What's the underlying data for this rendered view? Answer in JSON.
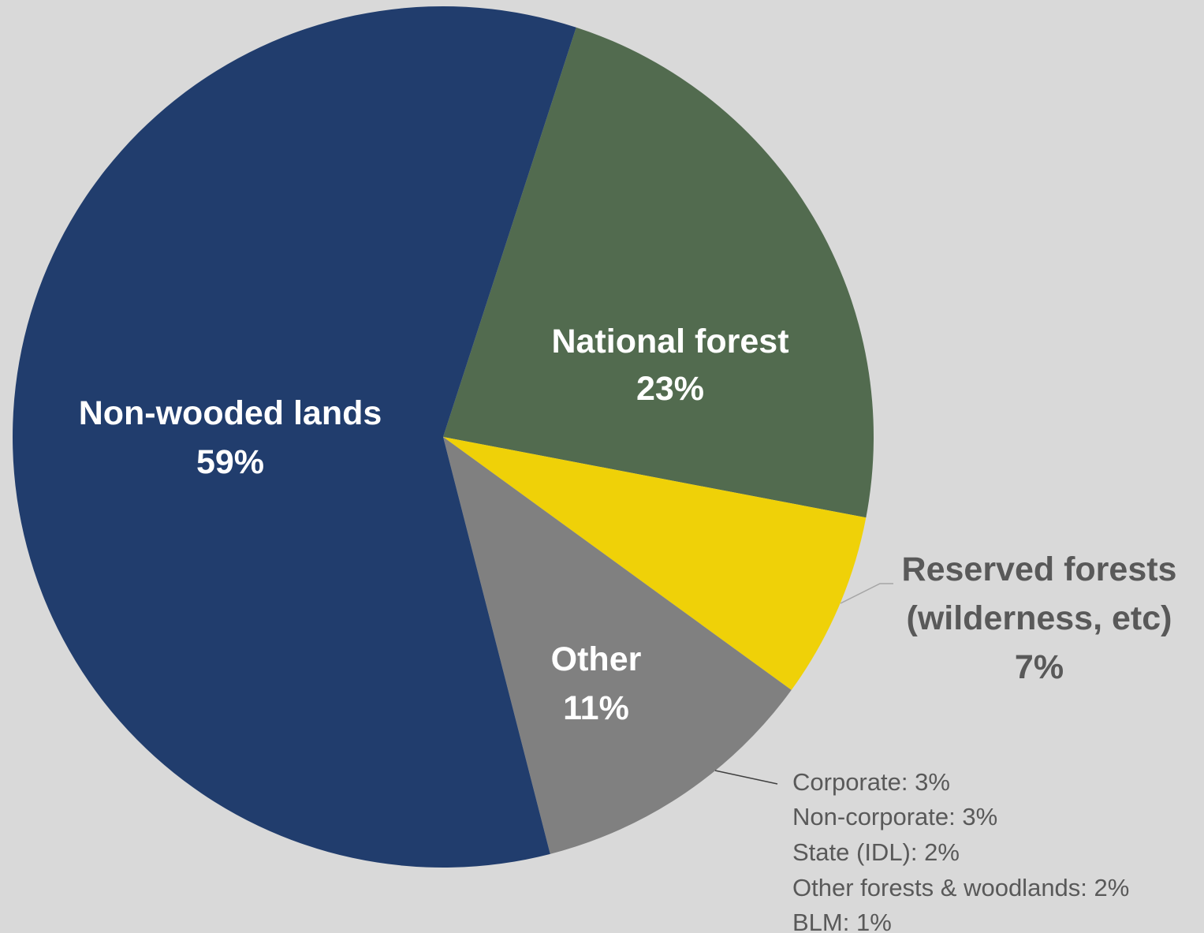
{
  "chart_data": {
    "type": "pie",
    "slices": [
      {
        "label": "National forest",
        "value": 23,
        "value_label": "23%",
        "color": "#526b4f",
        "label_color": "#ffffff"
      },
      {
        "label": "Reserved forests (wilderness, etc)",
        "label_lines": [
          "Reserved forests",
          "(wilderness, etc)"
        ],
        "value": 7,
        "value_label": "7%",
        "color": "#efd108",
        "label_color": "#595959"
      },
      {
        "label": "Other",
        "value": 11,
        "value_label": "11%",
        "color": "#808080",
        "label_color": "#ffffff"
      },
      {
        "label": "Non-wooded lands",
        "value": 59,
        "value_label": "59%",
        "color": "#213d6d",
        "label_color": "#ffffff"
      }
    ],
    "other_breakdown": [
      "Corporate: 3%",
      "Non-corporate: 3%",
      "State (IDL): 2%",
      "Other forests & woodlands: 2%",
      "BLM: 1%"
    ],
    "start_angle_deg": 18,
    "direction": "clockwise",
    "background": "#d9d9d9"
  }
}
